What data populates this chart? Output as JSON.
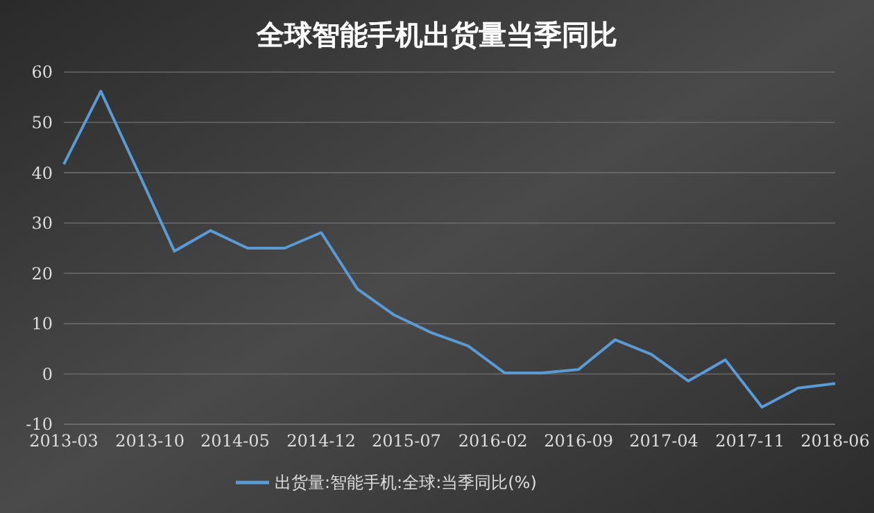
{
  "chart_data": {
    "type": "line",
    "title": "全球智能手机出货量当季同比",
    "x": [
      "2013-03",
      "2013-06",
      "2013-09",
      "2013-12",
      "2014-03",
      "2014-06",
      "2014-09",
      "2014-12",
      "2015-03",
      "2015-06",
      "2015-09",
      "2015-12",
      "2016-03",
      "2016-06",
      "2016-09",
      "2016-12",
      "2017-03",
      "2017-06",
      "2017-09",
      "2017-12",
      "2018-03",
      "2018-06"
    ],
    "series": [
      {
        "name": "出货量:智能手机:全球:当季同比(%)",
        "color": "#5b9bd5",
        "values": [
          41.7,
          56.2,
          40.3,
          24.4,
          28.5,
          25,
          25,
          28.1,
          16.9,
          11.7,
          8.2,
          5.6,
          0.2,
          0.2,
          0.9,
          6.8,
          3.9,
          -1.4,
          2.8,
          -6.6,
          -2.8,
          -1.9
        ]
      }
    ],
    "xlim": [
      "2013-03",
      "2018-06"
    ],
    "xticks": [
      "2013-03",
      "2013-10",
      "2014-05",
      "2014-12",
      "2015-07",
      "2016-02",
      "2016-09",
      "2017-04",
      "2017-11",
      "2018-06"
    ],
    "ylim": [
      -10,
      60
    ],
    "yticks": [
      -10,
      0,
      10,
      20,
      30,
      40,
      50,
      60
    ],
    "grid": "y",
    "legend": "bottom",
    "marker": "none",
    "line_style": "solid"
  }
}
